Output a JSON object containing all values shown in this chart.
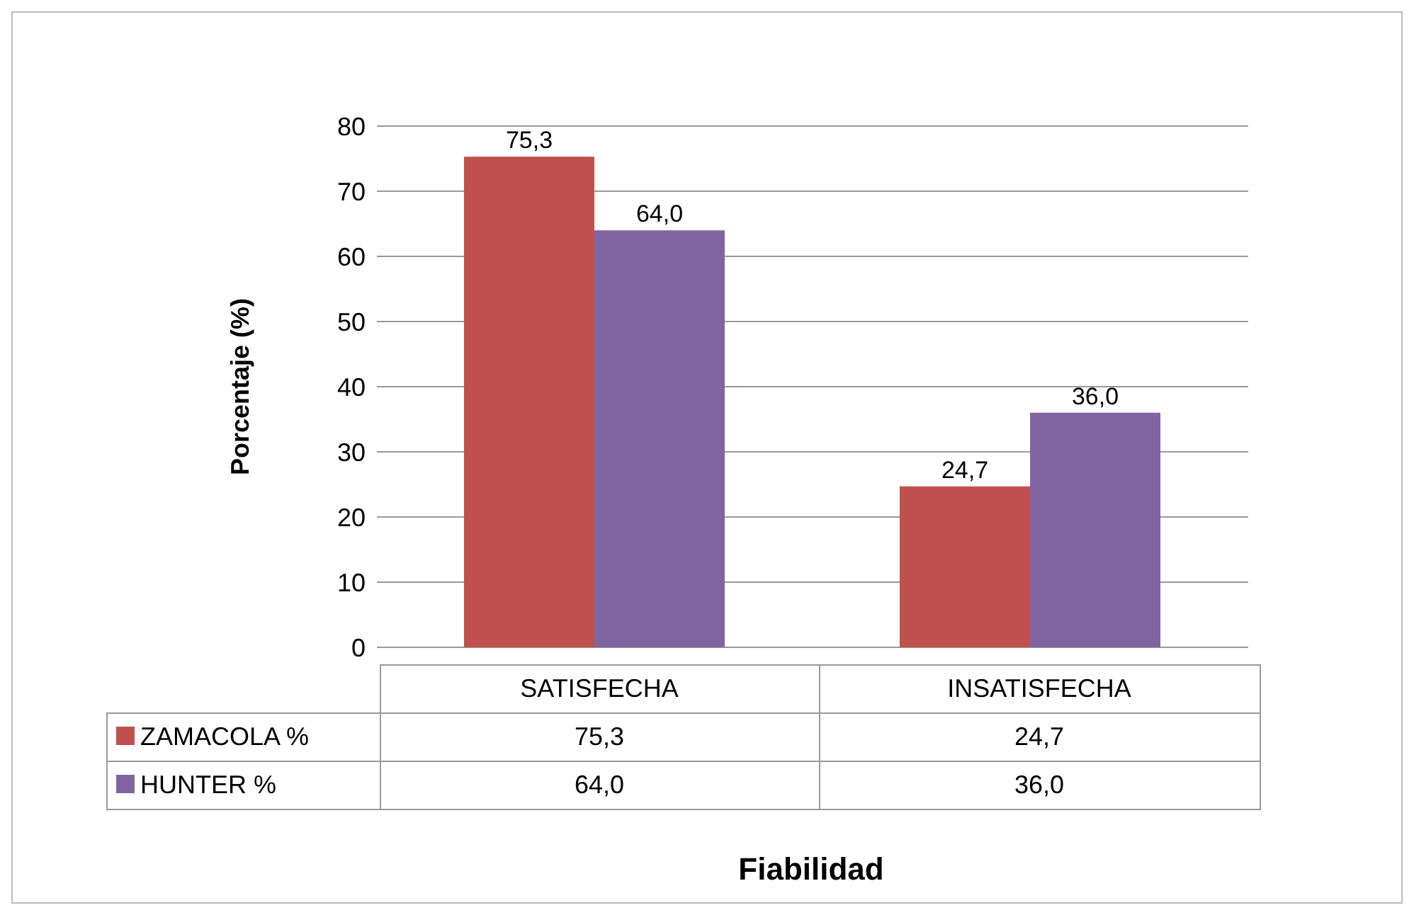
{
  "chart_data": {
    "type": "bar",
    "xlabel": "Fiabilidad",
    "ylabel": "Porcentaje (%)",
    "categories": [
      "SATISFECHA",
      "INSATISFECHA"
    ],
    "series": [
      {
        "name": "ZAMACOLA %",
        "color": "#c0504d",
        "values": [
          75.3,
          24.7
        ],
        "value_labels": [
          "75,3",
          "24,7"
        ]
      },
      {
        "name": "HUNTER %",
        "color": "#8064a2",
        "values": [
          64.0,
          36.0
        ],
        "value_labels": [
          "64,0",
          "36,0"
        ]
      }
    ],
    "ylim": [
      0,
      80
    ],
    "yticks": [
      0,
      10,
      20,
      30,
      40,
      50,
      60,
      70,
      80
    ],
    "grid": "y",
    "legend": "bottom"
  }
}
